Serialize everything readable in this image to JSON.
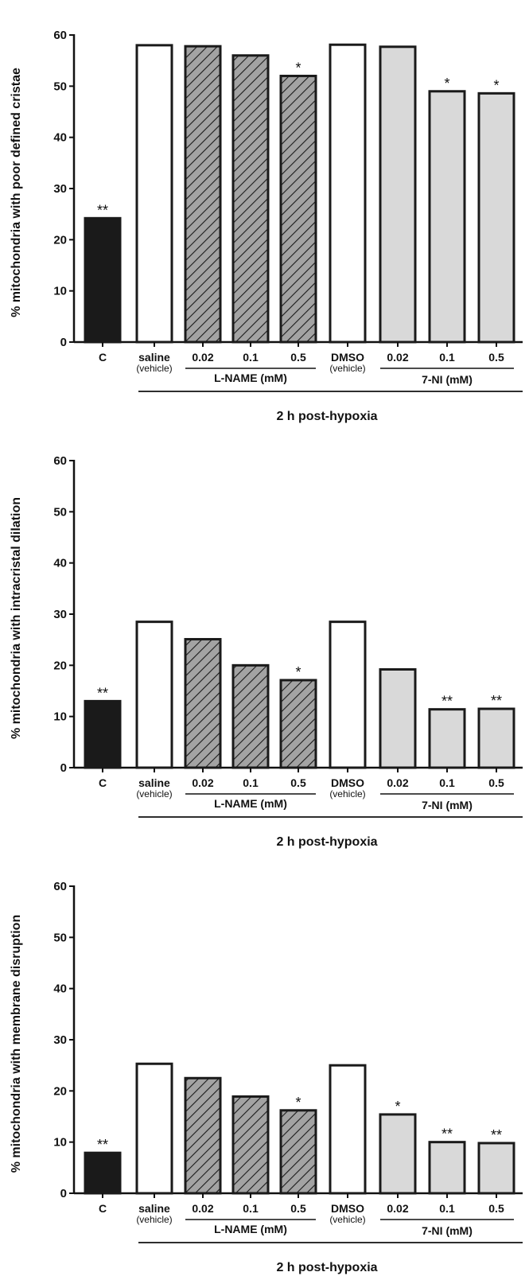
{
  "colors": {
    "control": "#1a1a1a",
    "vehicle": "#ffffff",
    "lname": "#a3a3a3",
    "sevenni": "#d9d9d9",
    "stroke": "#1a1a1a"
  },
  "chart_data": [
    {
      "type": "bar",
      "ylabel": "% mitochondria with poor defined cristae",
      "ylim": [
        0,
        60
      ],
      "yticks": [
        "0",
        "10",
        "20",
        "30",
        "40",
        "50",
        "60"
      ],
      "categories": [
        "C",
        "saline",
        "0.02",
        "0.1",
        "0.5",
        "DMSO",
        "0.02",
        "0.1",
        "0.5"
      ],
      "sublabels": [
        "",
        "(vehicle)",
        "",
        "",
        "",
        "(vehicle)",
        "",
        "",
        ""
      ],
      "fills": [
        "control",
        "vehicle",
        "lname",
        "lname",
        "lname",
        "vehicle",
        "sevenni",
        "sevenni",
        "sevenni"
      ],
      "values": [
        24.2,
        58.0,
        57.8,
        56.0,
        52.0,
        58.1,
        57.7,
        49.0,
        48.6
      ],
      "significance": [
        "**",
        "",
        "",
        "",
        "*",
        "",
        "",
        "*",
        "*"
      ],
      "group_labels": [
        "L-NAME (mM)",
        "7-NI (mM)"
      ],
      "xlabel": "2 h post-hypoxia"
    },
    {
      "type": "bar",
      "ylabel": "% mitochondria with intracristal dilation",
      "ylim": [
        0,
        60
      ],
      "yticks": [
        "0",
        "10",
        "20",
        "30",
        "40",
        "50",
        "60"
      ],
      "categories": [
        "C",
        "saline",
        "0.02",
        "0.1",
        "0.5",
        "DMSO",
        "0.02",
        "0.1",
        "0.5"
      ],
      "sublabels": [
        "",
        "(vehicle)",
        "",
        "",
        "",
        "(vehicle)",
        "",
        "",
        ""
      ],
      "fills": [
        "control",
        "vehicle",
        "lname",
        "lname",
        "lname",
        "vehicle",
        "sevenni",
        "sevenni",
        "sevenni"
      ],
      "values": [
        13.0,
        28.5,
        25.1,
        20.0,
        17.1,
        28.5,
        19.2,
        11.4,
        11.5
      ],
      "significance": [
        "**",
        "",
        "",
        "",
        "*",
        "",
        "",
        "**",
        "**"
      ],
      "group_labels": [
        "L-NAME (mM)",
        "7-NI (mM)"
      ],
      "xlabel": "2 h post-hypoxia"
    },
    {
      "type": "bar",
      "ylabel": "% mitochondria with membrane disruption",
      "ylim": [
        0,
        60
      ],
      "yticks": [
        "0",
        "10",
        "20",
        "30",
        "40",
        "50",
        "60"
      ],
      "categories": [
        "C",
        "saline",
        "0.02",
        "0.1",
        "0.5",
        "DMSO",
        "0.02",
        "0.1",
        "0.5"
      ],
      "sublabels": [
        "",
        "(vehicle)",
        "",
        "",
        "",
        "(vehicle)",
        "",
        "",
        ""
      ],
      "fills": [
        "control",
        "vehicle",
        "lname",
        "lname",
        "lname",
        "vehicle",
        "sevenni",
        "sevenni",
        "sevenni"
      ],
      "values": [
        7.9,
        25.3,
        22.5,
        18.9,
        16.2,
        25.0,
        15.4,
        10.0,
        9.8
      ],
      "significance": [
        "**",
        "",
        "",
        "",
        "*",
        "",
        "*",
        "**",
        "**"
      ],
      "group_labels": [
        "L-NAME (mM)",
        "7-NI (mM)"
      ],
      "xlabel": "2 h post-hypoxia"
    }
  ]
}
